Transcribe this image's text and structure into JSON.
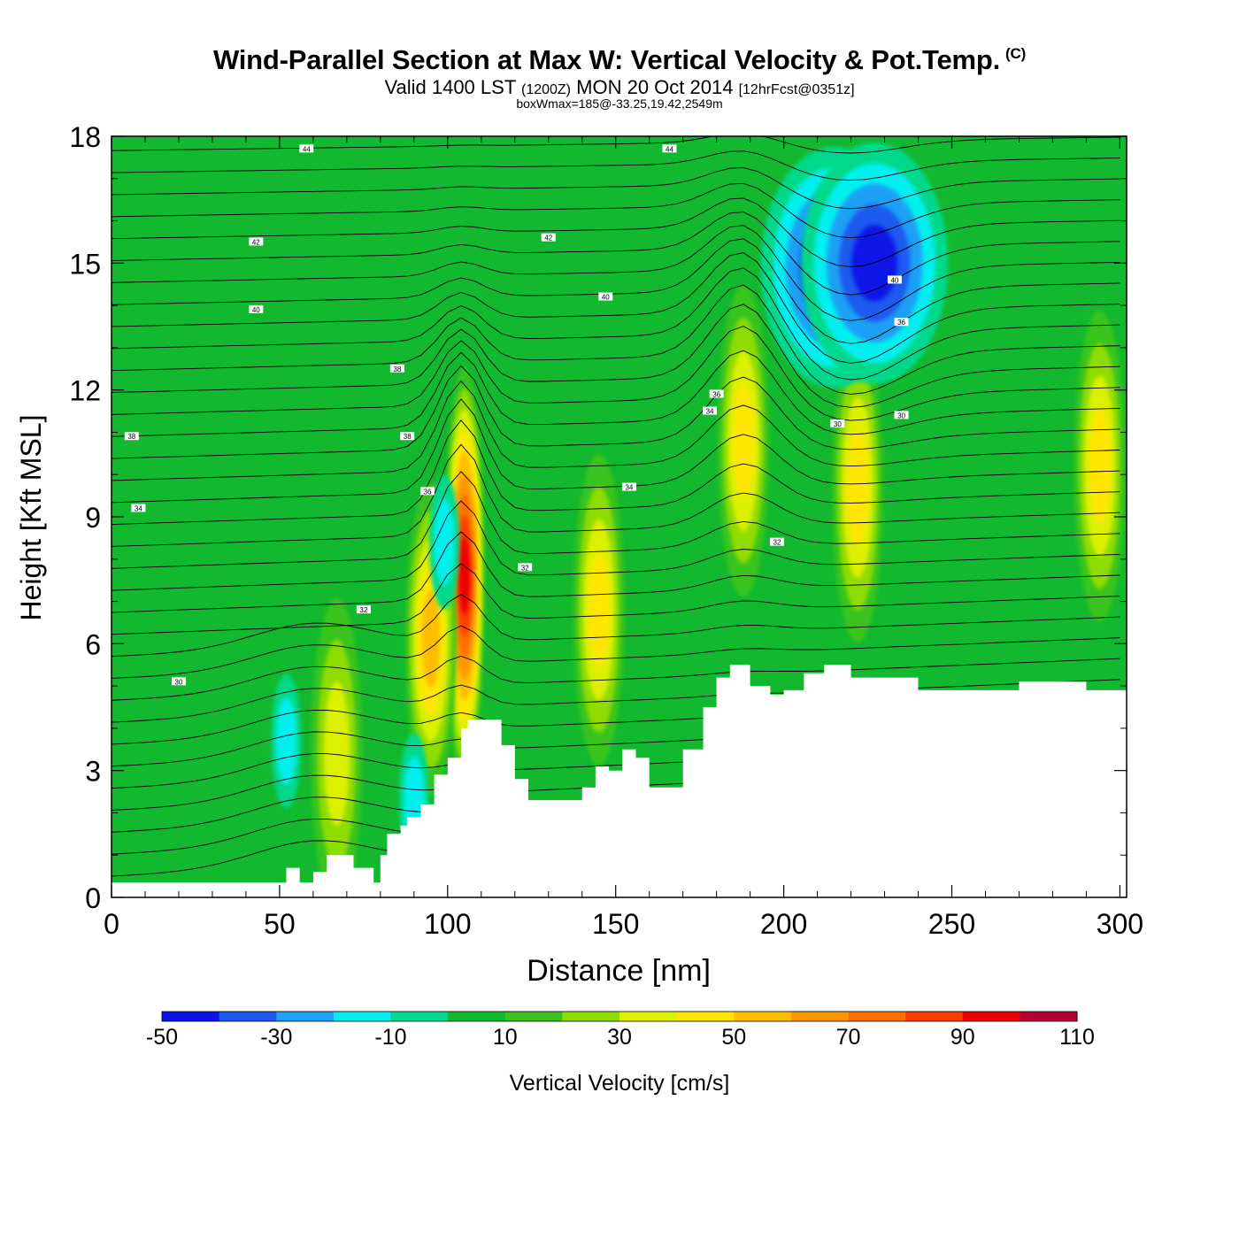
{
  "header": {
    "title": "Wind-Parallel Section at Max W: Vertical Velocity & Pot.Temp.",
    "copyright": "(C)",
    "valid_prefix": "Valid 1400 LST",
    "utc": "(1200Z)",
    "date": "MON 20 Oct 2014",
    "forecast": "[12hrFcst@0351z]",
    "box_info": "boxWmax=185@-33.25,19.42,2549m"
  },
  "chart_data": {
    "type": "heatmap",
    "xlabel": "Distance [nm]",
    "ylabel": "Height [Kft MSL]",
    "xlim": [
      0,
      302
    ],
    "ylim": [
      0,
      18
    ],
    "xticks": [
      0,
      50,
      100,
      150,
      200,
      250,
      300
    ],
    "yticks": [
      0,
      3,
      6,
      9,
      12,
      15,
      18
    ],
    "colorbar": {
      "label": "Vertical Velocity [cm/s]",
      "levels": [
        -50,
        -40,
        -30,
        -20,
        -10,
        0,
        10,
        20,
        30,
        40,
        50,
        60,
        70,
        80,
        90,
        100,
        110
      ],
      "tick_labels": [
        "-50",
        "-30",
        "-10",
        "10",
        "30",
        "50",
        "70",
        "90",
        "110"
      ],
      "colors": [
        "#0a14e6",
        "#1e5af0",
        "#1ea0f5",
        "#00f0f0",
        "#00d98c",
        "#12b82e",
        "#39c41c",
        "#8fdc00",
        "#dcf000",
        "#ffe600",
        "#ffbe00",
        "#ff9600",
        "#ff6e00",
        "#ff3c00",
        "#eb0000",
        "#b40032"
      ]
    },
    "terrain_kft": {
      "x": [
        0,
        50,
        52,
        56,
        60,
        64,
        66,
        72,
        78,
        80,
        82,
        86,
        88,
        92,
        96,
        100,
        104,
        106,
        110,
        116,
        120,
        124,
        130,
        136,
        140,
        144,
        148,
        152,
        156,
        160,
        164,
        170,
        176,
        180,
        184,
        190,
        196,
        200,
        206,
        212,
        220,
        230,
        240,
        250,
        260,
        270,
        280,
        290,
        302
      ],
      "y": [
        0.35,
        0.35,
        0.7,
        0.35,
        0.6,
        1.0,
        1.0,
        0.7,
        0.35,
        1.0,
        1.5,
        1.7,
        1.9,
        2.2,
        2.9,
        3.3,
        4.0,
        4.2,
        4.2,
        3.6,
        2.8,
        2.3,
        2.3,
        2.3,
        2.6,
        3.1,
        3.0,
        3.5,
        3.3,
        2.6,
        2.6,
        3.5,
        4.5,
        5.2,
        5.5,
        5.0,
        4.8,
        4.9,
        5.3,
        5.5,
        5.2,
        5.2,
        4.9,
        4.9,
        4.9,
        5.1,
        5.1,
        4.9,
        4.9
      ]
    },
    "w_cells_cm_s": [
      {
        "x": 105,
        "y": 7.6,
        "peak": 95
      },
      {
        "x": 95,
        "y": 6.1,
        "peak": 55
      },
      {
        "x": 145,
        "y": 6.8,
        "peak": 45
      },
      {
        "x": 67,
        "y": 3.4,
        "peak": 35
      },
      {
        "x": 188,
        "y": 10.8,
        "peak": 45
      },
      {
        "x": 222,
        "y": 9.7,
        "peak": 48
      },
      {
        "x": 294,
        "y": 10.2,
        "peak": 45
      },
      {
        "x": 215,
        "y": 14.9,
        "peak": -50
      },
      {
        "x": 227,
        "y": 15.0,
        "peak": -48
      },
      {
        "x": 99,
        "y": 8.4,
        "peak": -22
      },
      {
        "x": 90,
        "y": 2.3,
        "peak": -22
      },
      {
        "x": 52,
        "y": 3.7,
        "peak": -15
      }
    ],
    "theta_contour_labels": [
      "44",
      "44",
      "42",
      "42",
      "40",
      "40",
      "40",
      "38",
      "38",
      "38",
      "36",
      "36",
      "36",
      "34",
      "34",
      "34",
      "32",
      "32",
      "32",
      "30",
      "30",
      "30"
    ]
  }
}
